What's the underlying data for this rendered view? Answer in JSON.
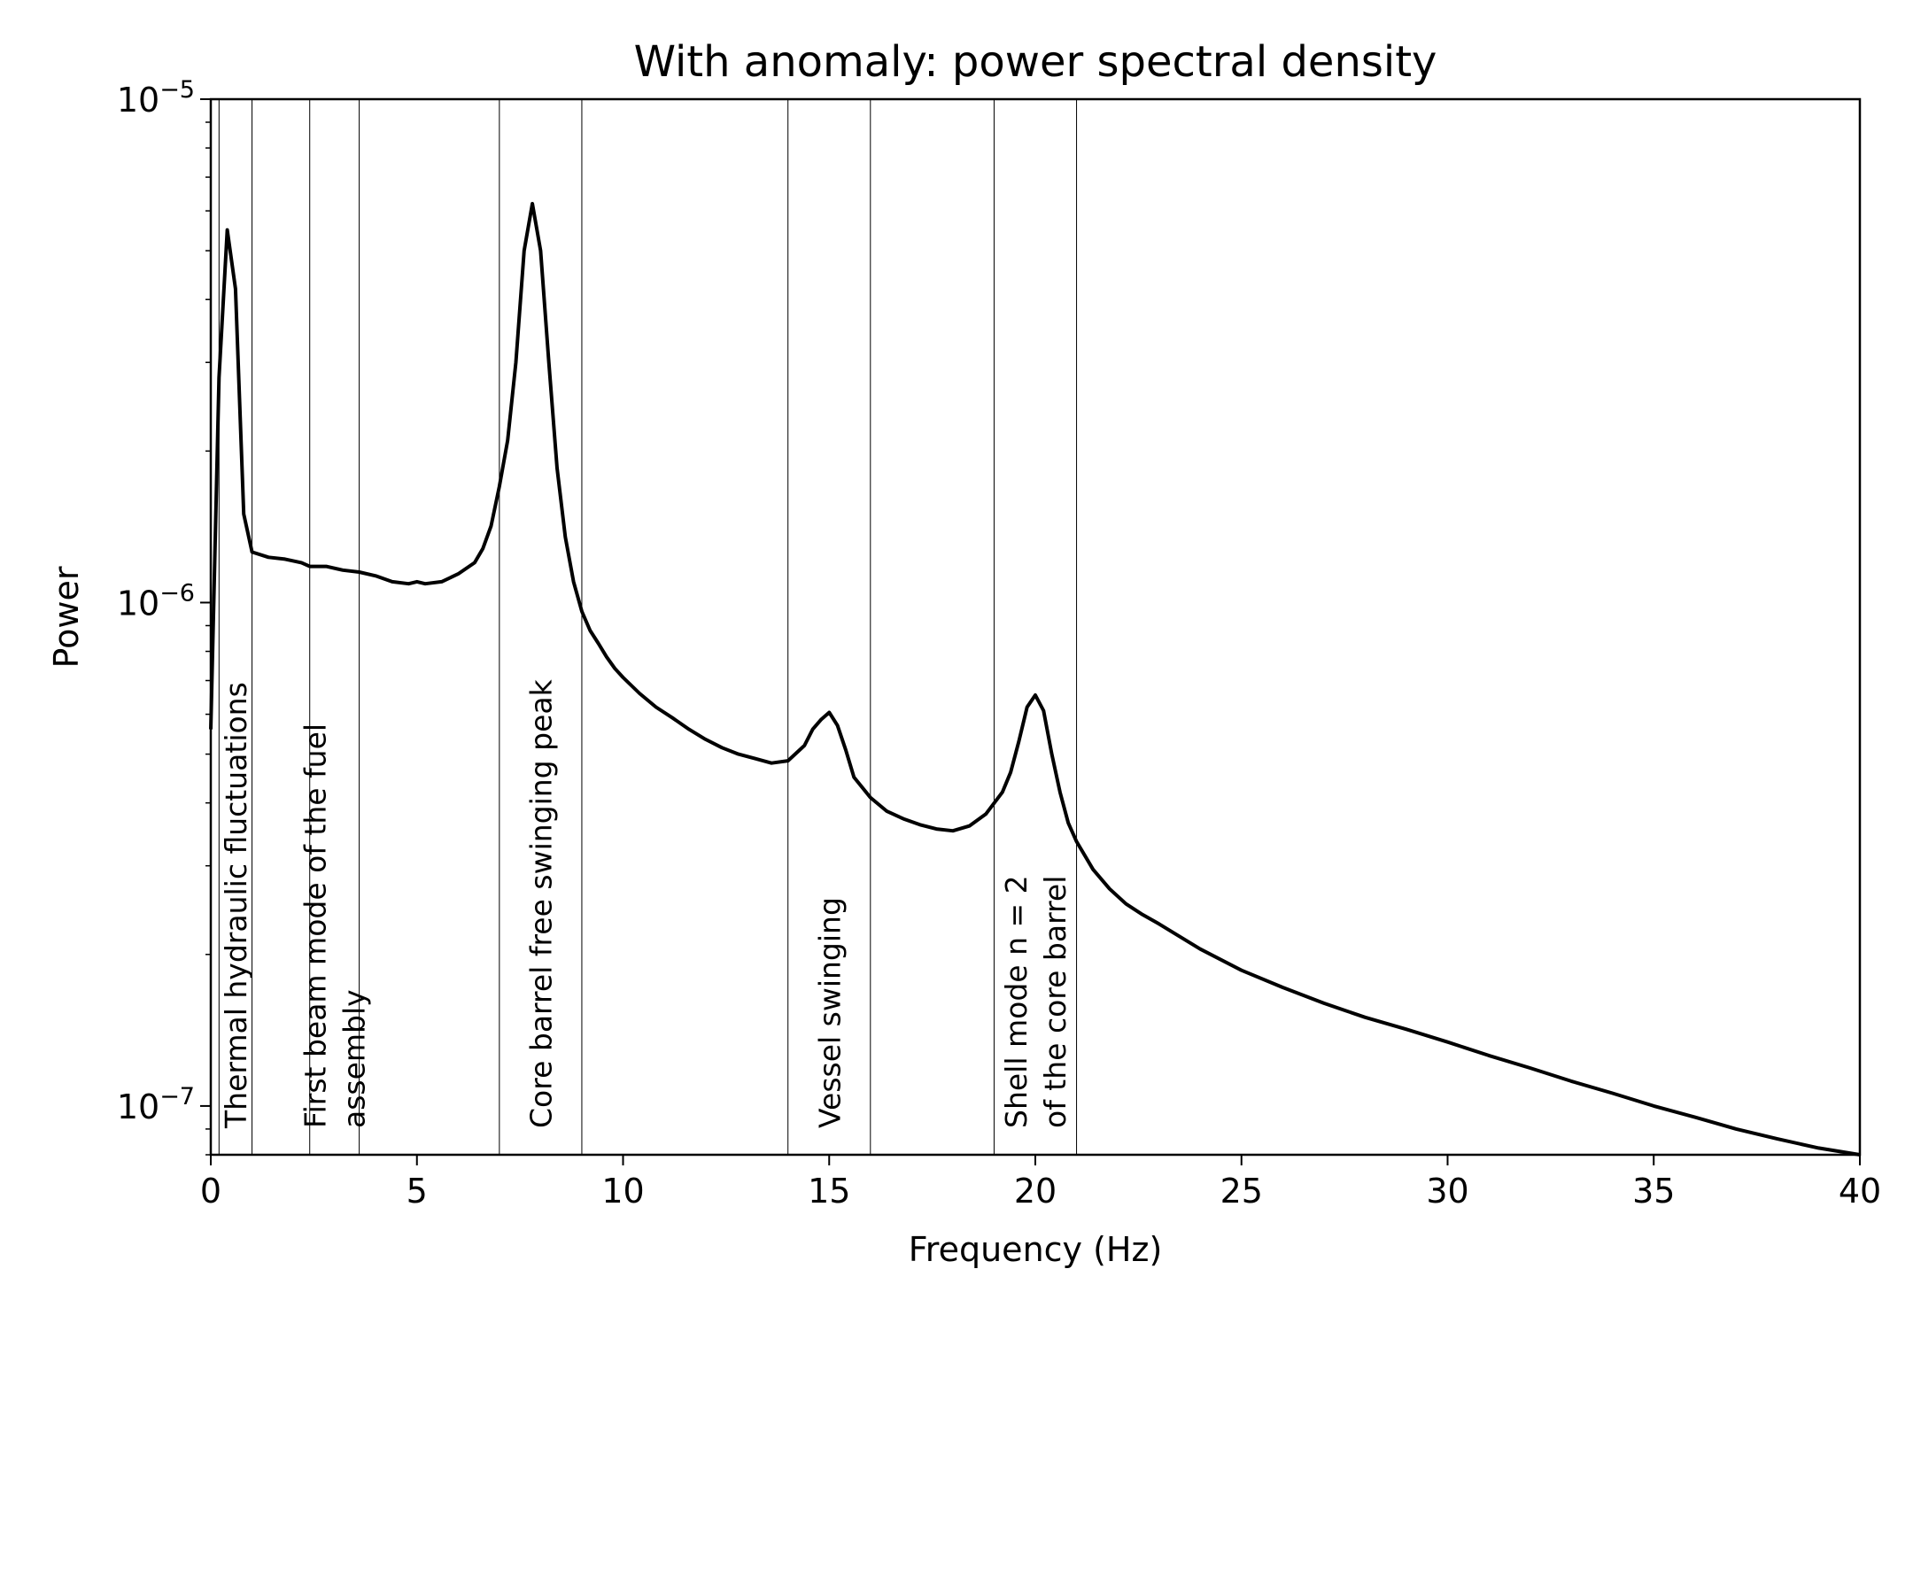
{
  "chart_data": {
    "type": "line",
    "title": "With anomaly: power spectral density",
    "xlabel": "Frequency (Hz)",
    "ylabel": "Power",
    "xlim": [
      0,
      40
    ],
    "ylim": [
      8e-08,
      1e-05
    ],
    "yscale": "log",
    "grid": false,
    "xticks": [
      0,
      5,
      10,
      15,
      20,
      25,
      30,
      35,
      40
    ],
    "xtick_labels": [
      "0",
      "5",
      "10",
      "15",
      "20",
      "25",
      "30",
      "35",
      "40"
    ],
    "yticks": [
      {
        "value": 1e-07,
        "base": "10",
        "exp": "−7"
      },
      {
        "value": 1e-06,
        "base": "10",
        "exp": "−6"
      },
      {
        "value": 1e-05,
        "base": "10",
        "exp": "−5"
      }
    ],
    "vlines": [
      0.2,
      1.0,
      2.4,
      3.6,
      7.0,
      9.0,
      14.0,
      16.0,
      19.0,
      21.0
    ],
    "annotations": [
      {
        "lines": [
          "Thermal hydraulic fluctuations"
        ],
        "x": 0.6
      },
      {
        "lines": [
          "First beam mode of the fuel",
          "assembly"
        ],
        "x": 3.0
      },
      {
        "lines": [
          "Core barrel free swinging peak"
        ],
        "x": 8.0
      },
      {
        "lines": [
          "Vessel swinging"
        ],
        "x": 15.0
      },
      {
        "lines": [
          "Shell mode n = 2",
          "of the core barrel"
        ],
        "x": 20.0
      }
    ],
    "series": [
      {
        "color": "#000000",
        "x": [
          0,
          0.2,
          0.4,
          0.6,
          0.8,
          1.0,
          1.4,
          1.8,
          2.2,
          2.4,
          2.8,
          3.2,
          3.6,
          4.0,
          4.4,
          4.8,
          5.0,
          5.2,
          5.6,
          6.0,
          6.4,
          6.6,
          6.8,
          7.0,
          7.2,
          7.4,
          7.6,
          7.8,
          8.0,
          8.2,
          8.4,
          8.6,
          8.8,
          9.0,
          9.2,
          9.4,
          9.6,
          9.8,
          10.0,
          10.4,
          10.8,
          11.2,
          11.6,
          12.0,
          12.4,
          12.8,
          13.2,
          13.6,
          14.0,
          14.4,
          14.6,
          14.8,
          15.0,
          15.2,
          15.4,
          15.6,
          16.0,
          16.4,
          16.8,
          17.2,
          17.6,
          18.0,
          18.4,
          18.8,
          19.2,
          19.4,
          19.6,
          19.8,
          20.0,
          20.2,
          20.4,
          20.6,
          20.8,
          21.0,
          21.4,
          21.8,
          22.2,
          22.6,
          23.0,
          24.0,
          25.0,
          26.0,
          27.0,
          28.0,
          29.0,
          30.0,
          31.0,
          32.0,
          33.0,
          34.0,
          35.0,
          36.0,
          37.0,
          38.0,
          39.0,
          40.0
        ],
        "y": [
          5.6e-07,
          2.8e-06,
          5.5e-06,
          4.2e-06,
          1.5e-06,
          1.26e-06,
          1.23e-06,
          1.22e-06,
          1.2e-06,
          1.18e-06,
          1.18e-06,
          1.16e-06,
          1.15e-06,
          1.13e-06,
          1.1e-06,
          1.09e-06,
          1.1e-06,
          1.09e-06,
          1.1e-06,
          1.14e-06,
          1.2e-06,
          1.28e-06,
          1.42e-06,
          1.7e-06,
          2.1e-06,
          3e-06,
          5e-06,
          6.2e-06,
          5e-06,
          3e-06,
          1.85e-06,
          1.35e-06,
          1.1e-06,
          9.6e-07,
          8.8e-07,
          8.3e-07,
          7.8e-07,
          7.4e-07,
          7.1e-07,
          6.6e-07,
          6.2e-07,
          5.9e-07,
          5.6e-07,
          5.35e-07,
          5.15e-07,
          5e-07,
          4.9e-07,
          4.8e-07,
          4.85e-07,
          5.2e-07,
          5.6e-07,
          5.85e-07,
          6.05e-07,
          5.7e-07,
          5.1e-07,
          4.5e-07,
          4.1e-07,
          3.85e-07,
          3.72e-07,
          3.62e-07,
          3.55e-07,
          3.52e-07,
          3.6e-07,
          3.8e-07,
          4.2e-07,
          4.6e-07,
          5.3e-07,
          6.2e-07,
          6.55e-07,
          6.1e-07,
          5e-07,
          4.2e-07,
          3.65e-07,
          3.35e-07,
          2.95e-07,
          2.7e-07,
          2.52e-07,
          2.4e-07,
          2.3e-07,
          2.05e-07,
          1.86e-07,
          1.72e-07,
          1.6e-07,
          1.5e-07,
          1.42e-07,
          1.34e-07,
          1.26e-07,
          1.19e-07,
          1.12e-07,
          1.06e-07,
          1e-07,
          9.5e-08,
          9e-08,
          8.6e-08,
          8.25e-08,
          8e-08
        ]
      }
    ]
  }
}
